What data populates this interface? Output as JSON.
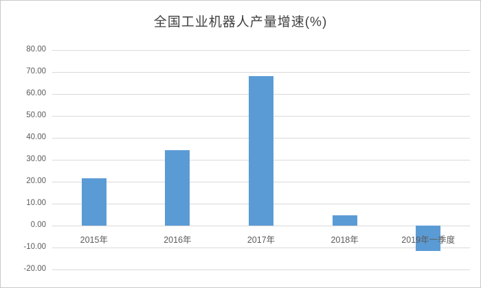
{
  "page": {
    "background_color": "#ffffff",
    "border_color": "#c9c9c9"
  },
  "chart_data": {
    "type": "bar",
    "title": "全国工业机器人产量增速(%)",
    "categories": [
      "2015年",
      "2016年",
      "2017年",
      "2018年",
      "2019年一季度"
    ],
    "values": [
      21.7,
      34.3,
      68.1,
      4.6,
      -11.7
    ],
    "xlabel": "",
    "ylabel": "",
    "ylim": [
      -20,
      80
    ],
    "ytick_step": 10,
    "ytick_decimals": 2,
    "grid": true,
    "legend_position": "none",
    "bar_color": "#5b9bd5",
    "gridline_color": "#d9d9d9",
    "axis_label_color": "#595959",
    "title_color": "#404040"
  }
}
